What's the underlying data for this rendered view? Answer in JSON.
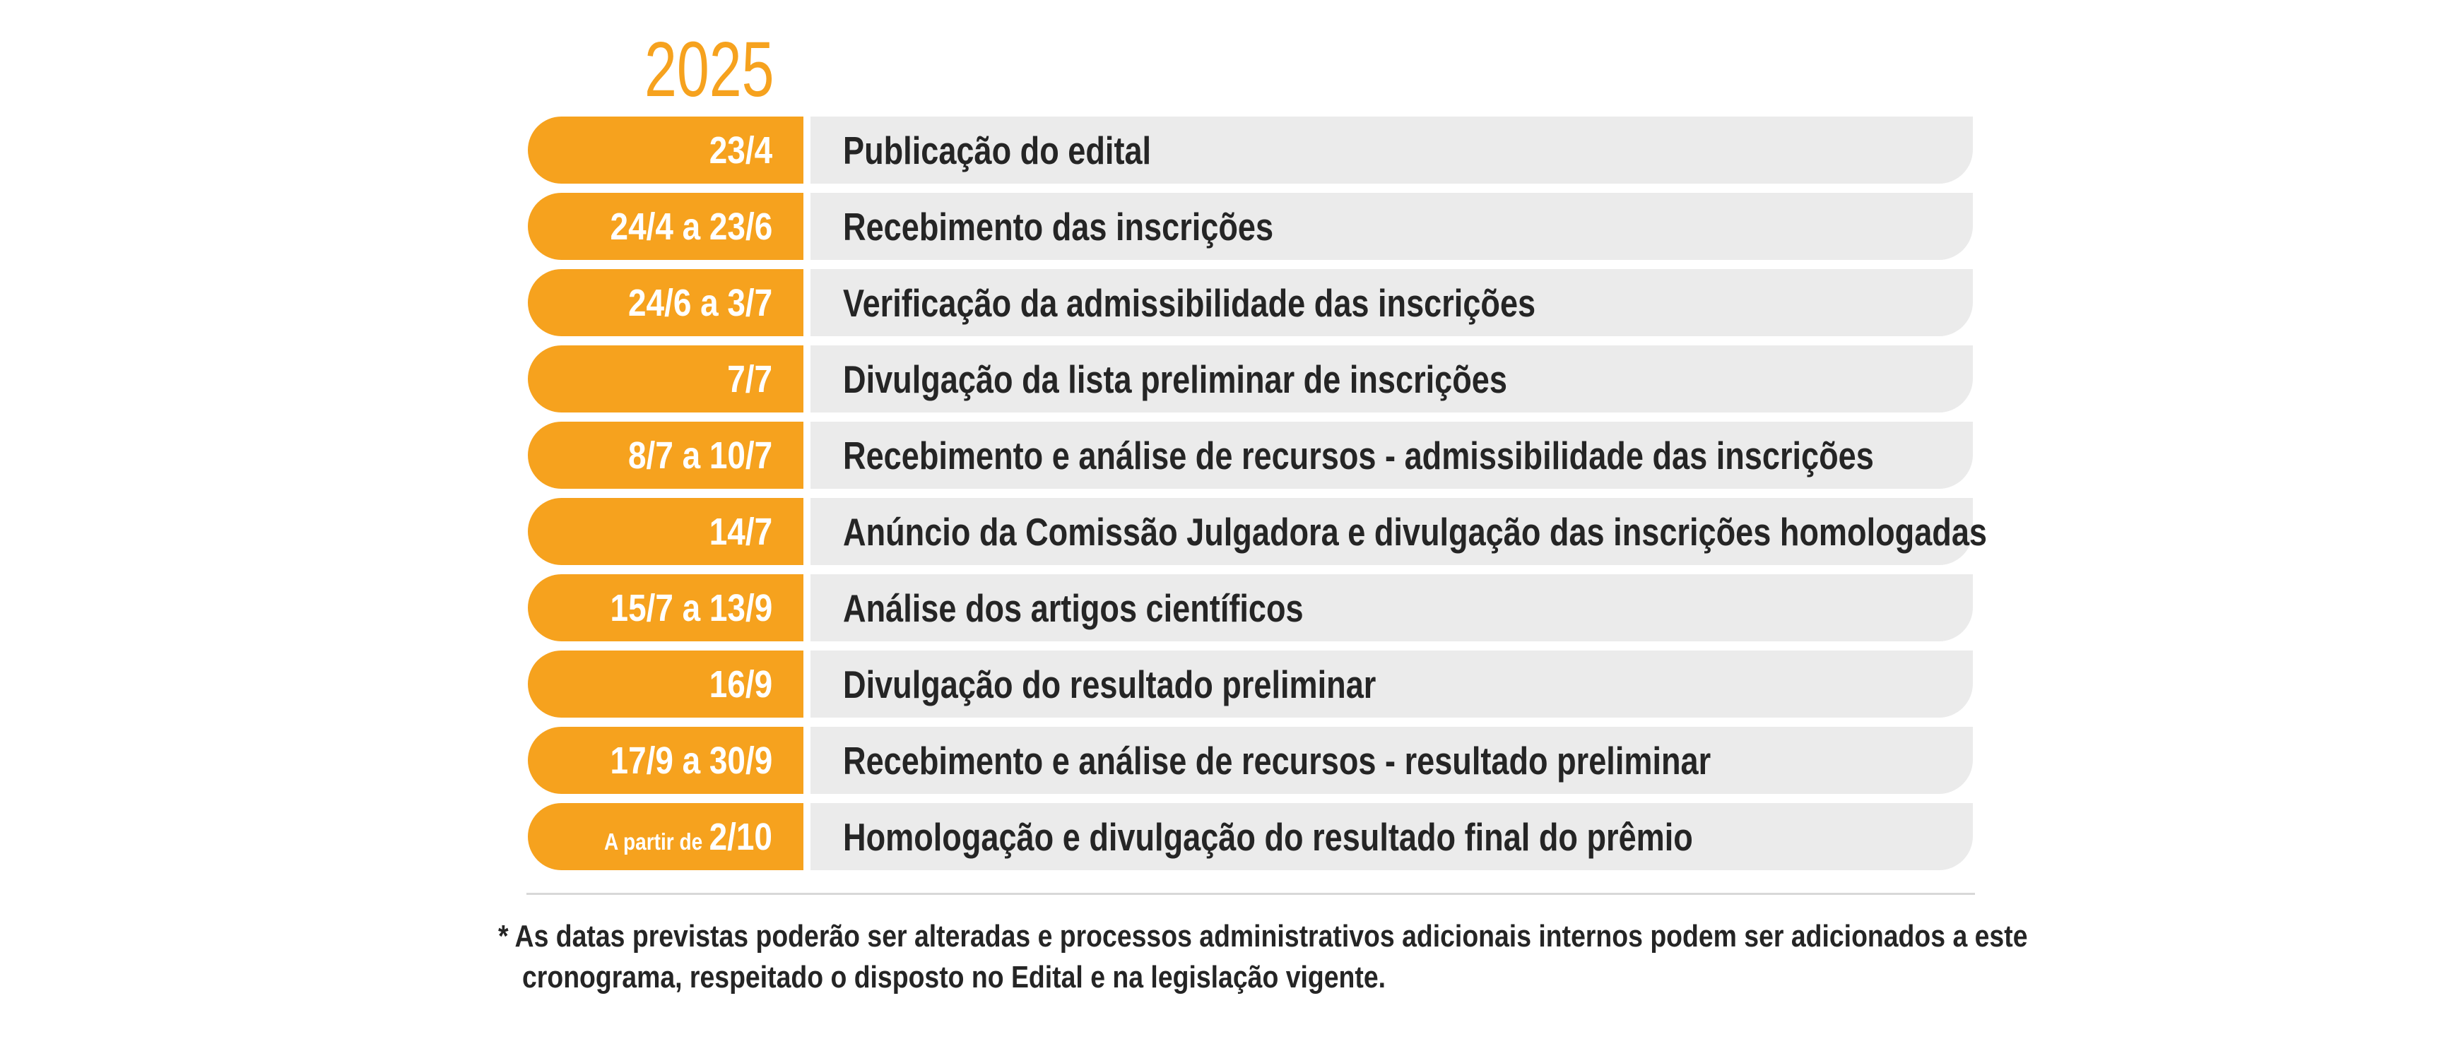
{
  "title": "2025",
  "colors": {
    "accent_orange": "#F6A21E",
    "bar_gray": "#EBEBEB",
    "label_text": "#252525",
    "date_text": "#FFFFFF",
    "divider": "#D8D8D8"
  },
  "timeline": {
    "rows": [
      {
        "date": "23/4",
        "label": "Publicação do edital"
      },
      {
        "date": "24/4 a 23/6",
        "label": "Recebimento das inscrições"
      },
      {
        "date": "24/6 a 3/7",
        "label": "Verificação da admissibilidade das inscrições"
      },
      {
        "date": "7/7",
        "label": "Divulgação da lista preliminar de inscrições"
      },
      {
        "date": "8/7 a 10/7",
        "label": "Recebimento e análise de recursos - admissibilidade das inscrições"
      },
      {
        "date": "14/7",
        "label": "Anúncio da Comissão Julgadora e divulgação das inscrições homologadas"
      },
      {
        "date": "15/7 a 13/9",
        "label": "Análise dos artigos científicos"
      },
      {
        "date": "16/9",
        "label": "Divulgação do resultado preliminar"
      },
      {
        "date": "17/9 a 30/9",
        "label": "Recebimento e análise de recursos - resultado preliminar"
      },
      {
        "date_prefix": "A partir de",
        "date": "2/10",
        "label": "Homologação e divulgação do resultado final do prêmio"
      }
    ]
  },
  "footnote": "* As datas previstas poderão ser alteradas e processos administrativos adicionais internos podem ser adicionados a este cronograma, respeitado o disposto no Edital e na legislação vigente."
}
